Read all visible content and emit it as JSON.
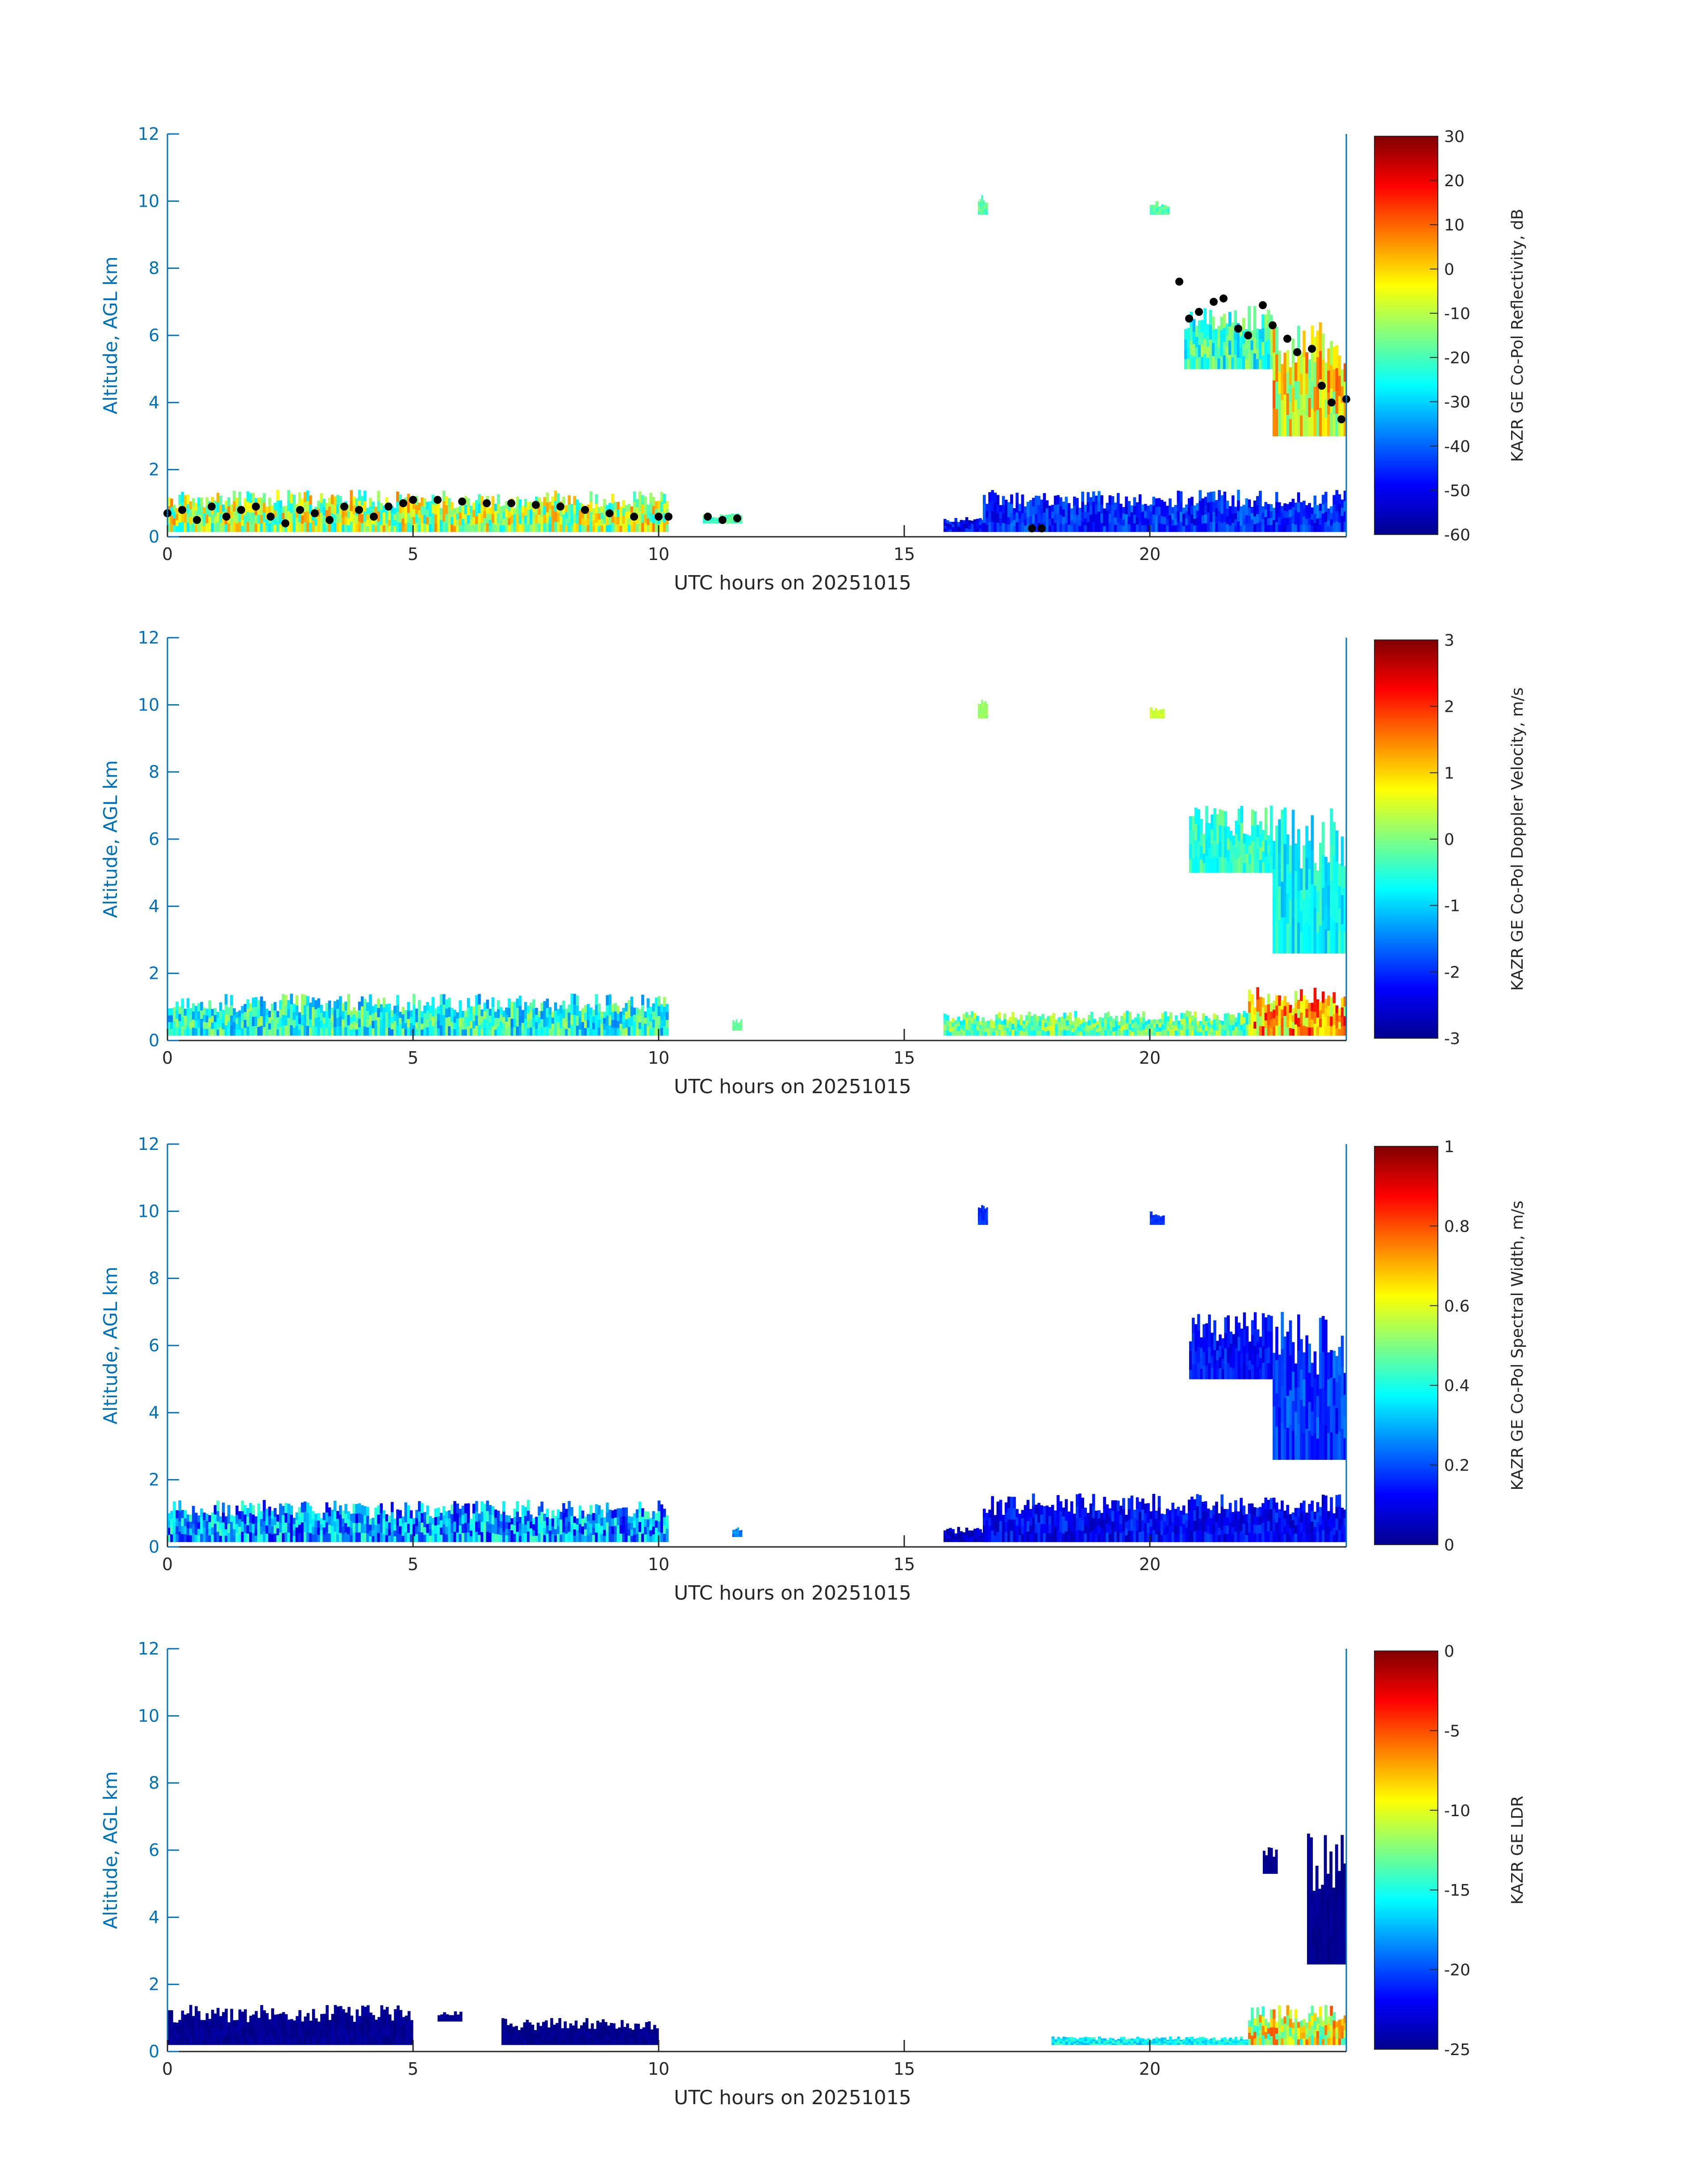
{
  "chart_data": [
    {
      "type": "heatmap",
      "title": "",
      "xlabel": "UTC hours on 20251015",
      "ylabel": "Altitude, AGL km",
      "xlim": [
        0,
        24
      ],
      "ylim": [
        0,
        12
      ],
      "xticks": [
        0,
        5,
        10,
        15,
        20
      ],
      "yticks": [
        0,
        2,
        4,
        6,
        8,
        10,
        12
      ],
      "colormap": "jet",
      "colorbar": {
        "label": "KAZR GE Co-Pol Reflectivity, dB",
        "range": [
          -60,
          30
        ],
        "ticks": [
          30,
          20,
          10,
          0,
          -10,
          -20,
          -30,
          -40,
          -50,
          -60
        ]
      },
      "overlay": {
        "type": "scatter",
        "color": "#000000",
        "x": [
          0,
          0.3,
          0.6,
          0.9,
          1.2,
          1.5,
          1.8,
          2.1,
          2.4,
          2.7,
          3.0,
          3.3,
          3.6,
          3.9,
          4.2,
          4.5,
          4.8,
          5.0,
          5.5,
          6.0,
          6.5,
          7.0,
          7.5,
          8.0,
          8.5,
          9.0,
          9.5,
          10.0,
          10.2,
          11.0,
          11.3,
          11.6,
          17.6,
          17.8,
          20.6,
          20.8,
          21.0,
          21.3,
          21.5,
          21.8,
          22.0,
          22.3,
          22.5,
          22.8,
          23.0,
          23.3,
          23.5,
          23.7,
          23.9,
          24.0
        ],
        "y": [
          0.7,
          0.8,
          0.5,
          0.9,
          0.6,
          0.8,
          0.9,
          0.6,
          0.4,
          0.8,
          0.7,
          0.5,
          0.9,
          0.8,
          0.6,
          0.9,
          1.0,
          1.1,
          1.1,
          1.05,
          1.0,
          1.0,
          0.95,
          0.9,
          0.8,
          0.7,
          0.6,
          0.6,
          0.6,
          0.6,
          0.5,
          0.55,
          0.25,
          0.25,
          7.6,
          6.5,
          6.7,
          7.0,
          7.1,
          6.2,
          6.0,
          6.9,
          6.3,
          5.9,
          5.5,
          5.6,
          4.5,
          4.0,
          3.5,
          4.1
        ]
      }
    },
    {
      "type": "heatmap",
      "title": "",
      "xlabel": "UTC hours on 20251015",
      "ylabel": "Altitude, AGL km",
      "xlim": [
        0,
        24
      ],
      "ylim": [
        0,
        12
      ],
      "xticks": [
        0,
        5,
        10,
        15,
        20
      ],
      "yticks": [
        0,
        2,
        4,
        6,
        8,
        10,
        12
      ],
      "colormap": "jet",
      "colorbar": {
        "label": "KAZR GE Co-Pol Doppler Velocity, m/s",
        "range": [
          -3,
          3
        ],
        "ticks": [
          3,
          2,
          1,
          0,
          -1,
          -2,
          -3
        ]
      }
    },
    {
      "type": "heatmap",
      "title": "",
      "xlabel": "UTC hours on 20251015",
      "ylabel": "Altitude, AGL km",
      "xlim": [
        0,
        24
      ],
      "ylim": [
        0,
        12
      ],
      "xticks": [
        0,
        5,
        10,
        15,
        20
      ],
      "yticks": [
        0,
        2,
        4,
        6,
        8,
        10,
        12
      ],
      "colormap": "jet",
      "colorbar": {
        "label": "KAZR GE Co-Pol Spectral Width, m/s",
        "range": [
          0,
          1
        ],
        "ticks": [
          1,
          0.8,
          0.6,
          0.4,
          0.2,
          0
        ]
      }
    },
    {
      "type": "heatmap",
      "title": "",
      "xlabel": "UTC hours on 20251015",
      "ylabel": "Altitude, AGL km",
      "xlim": [
        0,
        24
      ],
      "ylim": [
        0,
        12
      ],
      "xticks": [
        0,
        5,
        10,
        15,
        20
      ],
      "yticks": [
        0,
        2,
        4,
        6,
        8,
        10,
        12
      ],
      "colormap": "jet",
      "colorbar": {
        "label": "KAZR GE LDR",
        "range": [
          -25,
          0
        ],
        "ticks": [
          0,
          -5,
          -10,
          -15,
          -20,
          -25
        ]
      }
    }
  ]
}
